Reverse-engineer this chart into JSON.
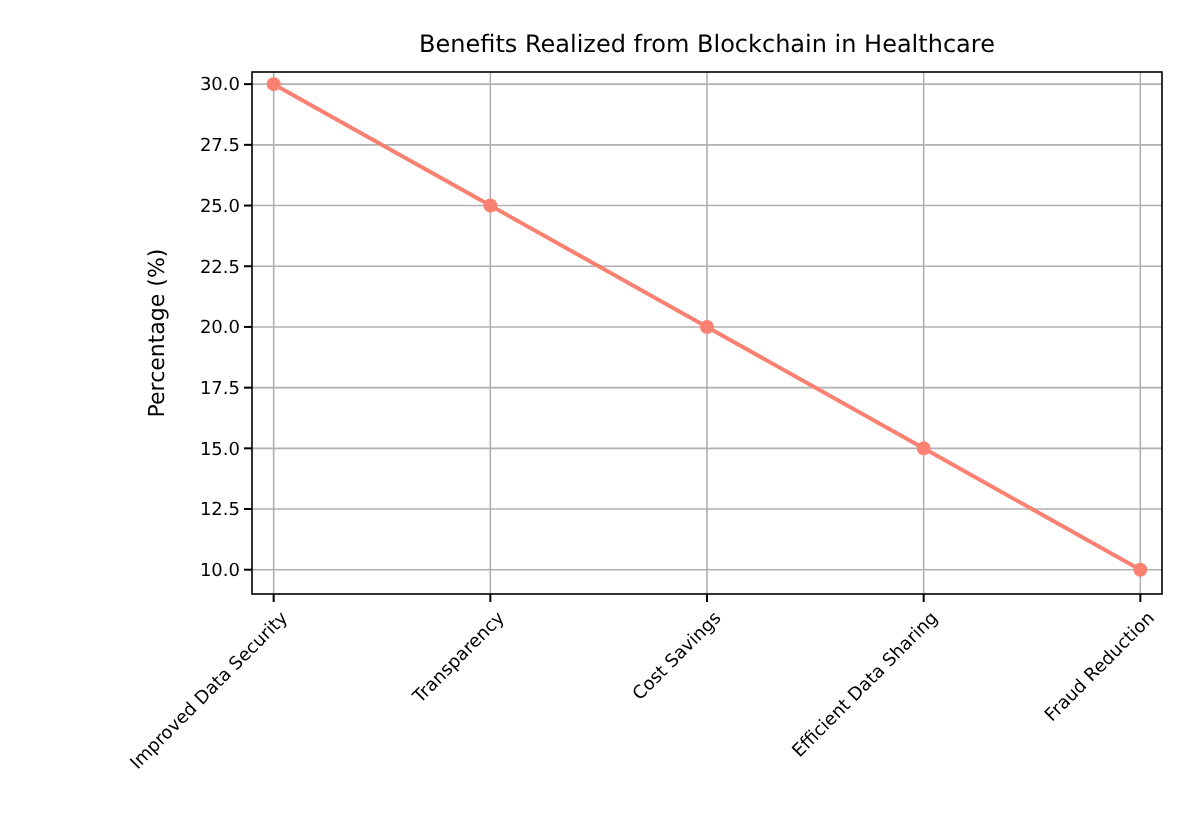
{
  "chart_data": {
    "type": "line",
    "title": "Benefits Realized from Blockchain in Healthcare",
    "ylabel": "Percentage (%)",
    "categories": [
      "Improved Data Security",
      "Transparency",
      "Cost Savings",
      "Efficient Data Sharing",
      "Fraud Reduction"
    ],
    "series": [
      {
        "color": "#fa8072",
        "values": [
          30,
          25,
          20,
          15,
          10
        ]
      }
    ],
    "ylim": [
      9,
      30.5
    ],
    "yticks": [
      {
        "value": 10,
        "label": "10.0"
      },
      {
        "value": 12.5,
        "label": "12.5"
      },
      {
        "value": 15,
        "label": "15.0"
      },
      {
        "value": 17.5,
        "label": "17.5"
      },
      {
        "value": 20,
        "label": "20.0"
      },
      {
        "value": 22.5,
        "label": "22.5"
      },
      {
        "value": 25,
        "label": "25.0"
      },
      {
        "value": 27.5,
        "label": "27.5"
      },
      {
        "value": 30,
        "label": "30.0"
      }
    ],
    "grid": true,
    "marker": "circle",
    "line_style": "solid"
  }
}
